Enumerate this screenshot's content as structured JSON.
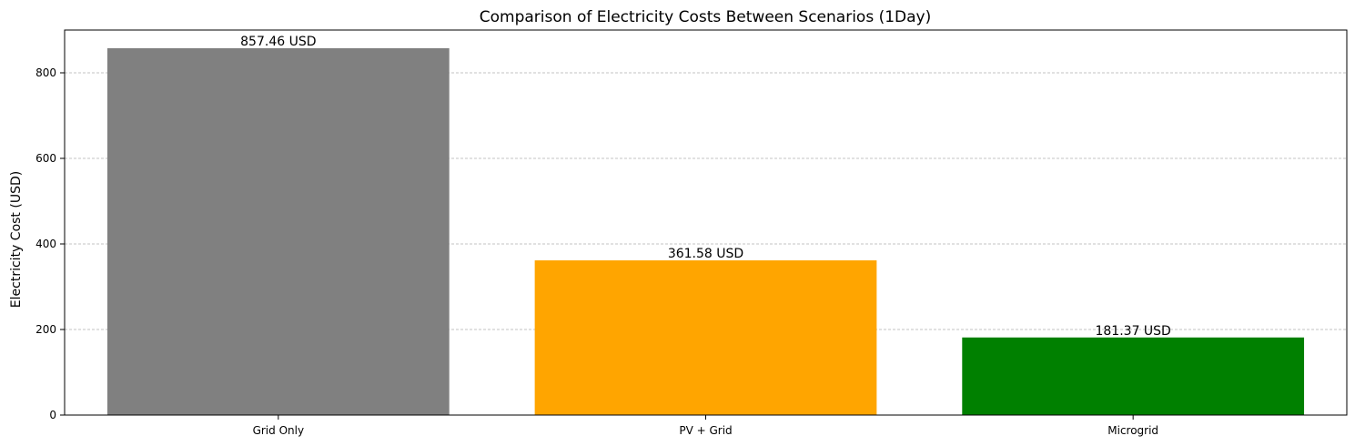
{
  "chart_data": {
    "type": "bar",
    "title": "Comparison of Electricity Costs Between Scenarios (1Day)",
    "xlabel": "",
    "ylabel": "Electricity Cost (USD)",
    "categories": [
      "Grid Only",
      "PV + Grid",
      "Microgrid"
    ],
    "values": [
      857.46,
      361.58,
      181.37
    ],
    "data_labels": [
      "857.46 USD",
      "361.58 USD",
      "181.37 USD"
    ],
    "colors": [
      "#808080",
      "#ffa500",
      "#008000"
    ],
    "ylim": [
      0,
      900
    ],
    "yticks": [
      0,
      200,
      400,
      600,
      800
    ],
    "grid": "y-dashed"
  }
}
